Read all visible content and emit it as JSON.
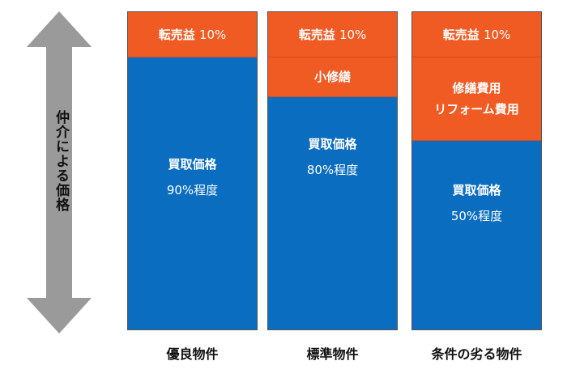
{
  "axis_label": "仲介による価格",
  "columns": [
    {
      "label": "優良物件",
      "segments": [
        {
          "lines": [
            "転売益",
            "10%"
          ],
          "color": "#f05a23"
        },
        {
          "lines": [
            "買取価格",
            "90%程度"
          ],
          "color": "#0b6dbf"
        }
      ]
    },
    {
      "label": "標準物件",
      "segments": [
        {
          "lines": [
            "転売益",
            "10%"
          ],
          "color": "#f05a23"
        },
        {
          "lines": [
            "小修繕"
          ],
          "color": "#f05a23"
        },
        {
          "lines": [
            "買取価格",
            "80%程度"
          ],
          "color": "#0b6dbf"
        }
      ]
    },
    {
      "label": "条件の劣る物件",
      "segments": [
        {
          "lines": [
            "転売益",
            "10%"
          ],
          "color": "#f05a23"
        },
        {
          "lines": [
            "修繕費用",
            "リフォーム費用"
          ],
          "color": "#f05a23"
        },
        {
          "lines": [
            "買取価格",
            "50%程度"
          ],
          "color": "#0b6dbf"
        }
      ]
    }
  ],
  "colors": {
    "accent_orange": "#f05a23",
    "accent_blue": "#0b6dbf",
    "arrow_gray": "#9a9a9a"
  }
}
